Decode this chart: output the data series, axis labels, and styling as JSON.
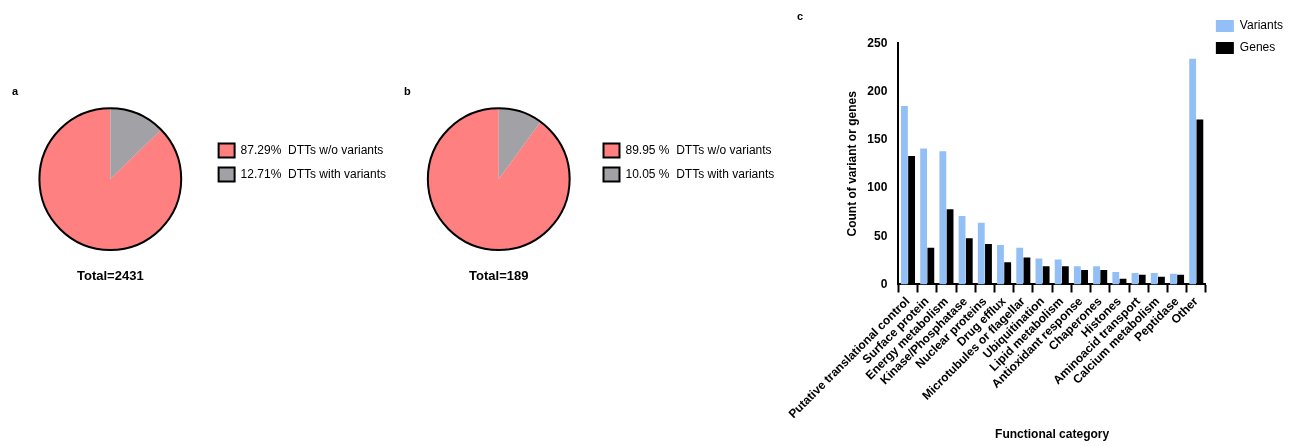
{
  "chart_data": [
    {
      "type": "pie",
      "title": "a",
      "categories": [
        "DTTs w/o variants",
        "DTTs with variants"
      ],
      "values": [
        87.29,
        12.71
      ],
      "value_labels": [
        "87.29%",
        "12.71%"
      ],
      "colors": [
        "#fe8080",
        "#a2a1a6"
      ],
      "legend": "right",
      "annotations": [
        "Total=2431"
      ]
    },
    {
      "type": "pie",
      "title": "b",
      "categories": [
        "DTTs w/o variants",
        "DTTs with variants"
      ],
      "values": [
        89.95,
        10.05
      ],
      "value_labels": [
        "89.95 %",
        "10.05 %"
      ],
      "colors": [
        "#fe8080",
        "#a2a1a6"
      ],
      "legend": "right",
      "annotations": [
        "Total=189"
      ]
    },
    {
      "type": "bar",
      "title": "c",
      "xlabel": "Functional category",
      "ylabel": "Count of variant or genes",
      "categories": [
        "Putative translational control",
        "Surface protein",
        "Energy metabolism",
        "Kinase/Phosphatase",
        "Nuclear proteins",
        "Drug efflux",
        "Microtubules or flagellar",
        "Ubiquitination",
        "Lipid metabolism",
        "Antioxidant response",
        "Chaperones",
        "Histones",
        "Aminoacid transport",
        "Calcium metabolism",
        "Peptidase",
        "Other"
      ],
      "series": [
        {
          "name": "Variants",
          "color": "#93bff7",
          "values": [
            185,
            141,
            138,
            71,
            64,
            41,
            38,
            27,
            26,
            19,
            19,
            13,
            12,
            12,
            11,
            234
          ]
        },
        {
          "name": "Genes",
          "color": "#000000",
          "values": [
            133,
            38,
            78,
            48,
            42,
            23,
            28,
            19,
            19,
            15,
            15,
            6,
            10,
            8,
            10,
            171
          ]
        }
      ],
      "ylim": [
        0,
        250
      ],
      "yticks": [
        0,
        50,
        100,
        150,
        200,
        250
      ],
      "legend": "top right"
    }
  ]
}
